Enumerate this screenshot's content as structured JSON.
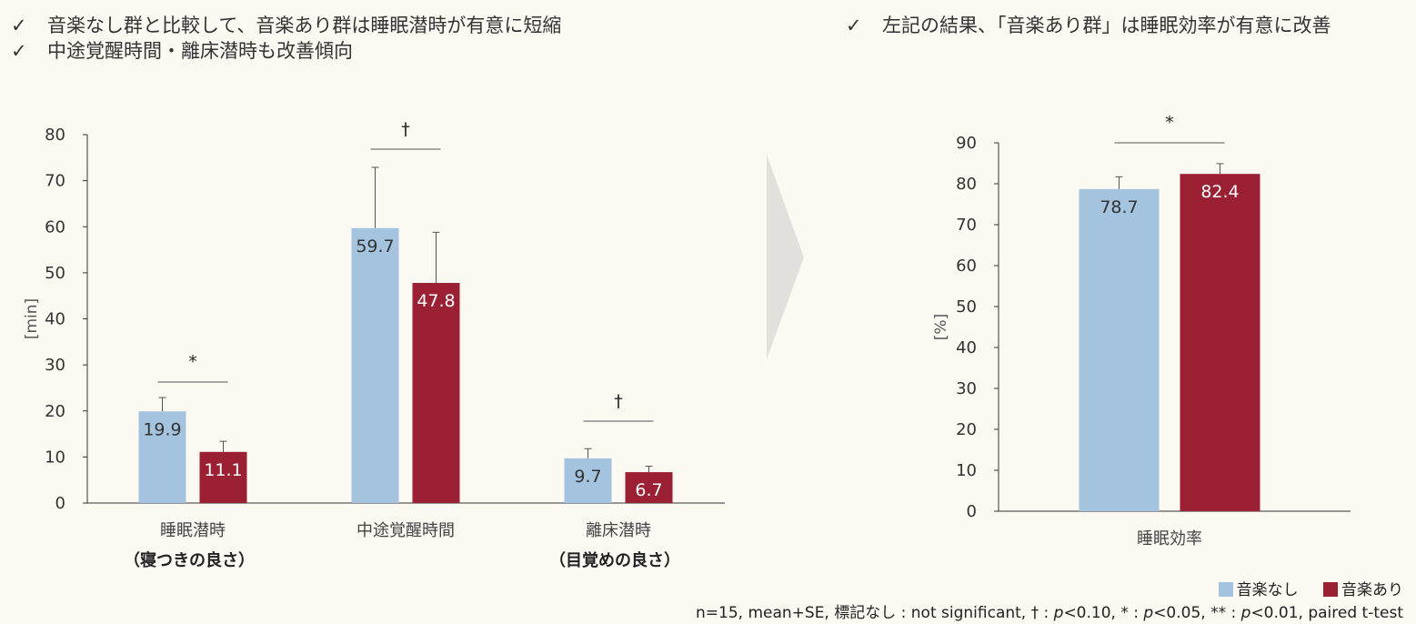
{
  "bullets_left": [
    "音楽なし群と比較して、音楽あり群は睡眠潜時が有意に短縮",
    "中途覚醒時間・離床潜時も改善傾向"
  ],
  "bullets_right": [
    "左記の結果、「音楽あり群」は睡眠効率が有意に改善"
  ],
  "check_symbol": "✓",
  "colors": {
    "no_music": "#a3c3df",
    "music": "#9b2033"
  },
  "legend": {
    "no_music": "音楽なし",
    "music": "音楽あり"
  },
  "note": {
    "prefix": "n=15, mean+SE, 標記なし : not significant, † : ",
    "p1": "p",
    "t1": "<0.10, * : ",
    "p2": "p",
    "t2": "<0.05, ** : ",
    "p3": "p",
    "t3": "<0.01, paired t-test"
  },
  "chart_data": [
    {
      "type": "bar",
      "ylabel": "[min]",
      "ylim": [
        0,
        80
      ],
      "yticks": [
        0,
        10,
        20,
        30,
        40,
        50,
        60,
        70,
        80
      ],
      "categories": [
        "睡眠潜時",
        "中途覚醒時間",
        "離床潜時"
      ],
      "sublabels": [
        "（寝つきの良さ）",
        "",
        "（目覚めの良さ）"
      ],
      "series": [
        {
          "key": "no_music",
          "values": [
            19.9,
            59.7,
            9.7
          ],
          "se": [
            3.0,
            13.2,
            2.1
          ]
        },
        {
          "key": "music",
          "values": [
            11.1,
            47.8,
            6.7
          ],
          "se": [
            2.3,
            11.0,
            1.3
          ]
        }
      ],
      "significance": [
        "*",
        "†",
        "†"
      ]
    },
    {
      "type": "bar",
      "ylabel": "[%]",
      "ylim": [
        0,
        90
      ],
      "yticks": [
        0,
        10,
        20,
        30,
        40,
        50,
        60,
        70,
        80,
        90
      ],
      "categories": [
        "睡眠効率"
      ],
      "series": [
        {
          "key": "no_music",
          "values": [
            78.7
          ],
          "se": [
            3.0
          ]
        },
        {
          "key": "music",
          "values": [
            82.4
          ],
          "se": [
            2.5
          ]
        }
      ],
      "significance": [
        "*"
      ]
    }
  ]
}
